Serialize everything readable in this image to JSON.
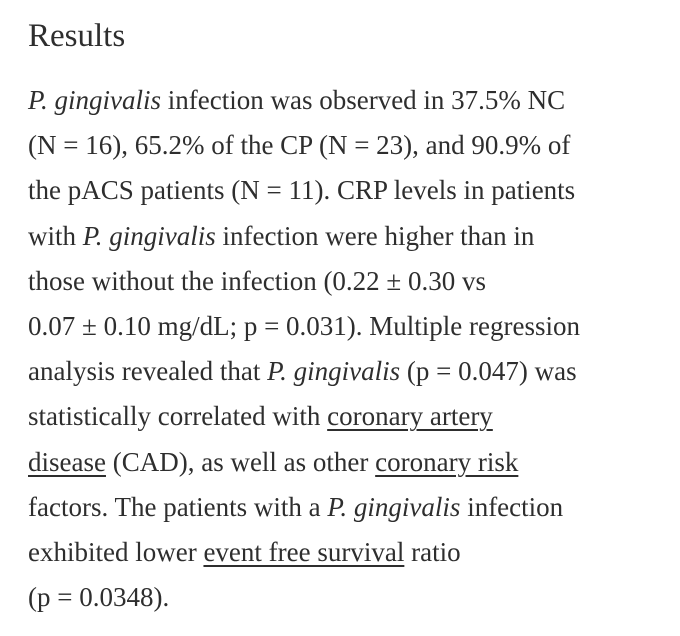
{
  "heading": "Results",
  "paragraph": {
    "lines": [
      [
        {
          "text": "P. gingivalis",
          "italic": true
        },
        {
          "text": " infection was observed in 37.5% NC"
        }
      ],
      [
        {
          "text": "(N = 16), 65.2% of the CP (N = 23), and 90.9% of"
        }
      ],
      [
        {
          "text": "the pACS patients (N = 11). CRP levels in patients"
        }
      ],
      [
        {
          "text": "with "
        },
        {
          "text": "P. gingivalis",
          "italic": true
        },
        {
          "text": " infection were higher than in"
        }
      ],
      [
        {
          "text": "those without the infection (0.22 ± 0.30 vs"
        }
      ],
      [
        {
          "text": "0.07 ± 0.10 mg/dL; p = 0.031). Multiple regression"
        }
      ],
      [
        {
          "text": "analysis revealed that "
        },
        {
          "text": "P. gingivalis",
          "italic": true
        },
        {
          "text": " (p = 0.047) was"
        }
      ],
      [
        {
          "text": "statistically correlated with "
        },
        {
          "text": "coronary artery",
          "underline": true
        }
      ],
      [
        {
          "text": "disease",
          "underline": true
        },
        {
          "text": " (CAD), as well as other "
        },
        {
          "text": "coronary risk",
          "underline": true
        }
      ],
      [
        {
          "text": "factors. The patients with a "
        },
        {
          "text": "P. gingivalis",
          "italic": true
        },
        {
          "text": " infection"
        }
      ],
      [
        {
          "text": "exhibited lower "
        },
        {
          "text": "event free survival",
          "underline": true
        },
        {
          "text": " ratio"
        }
      ],
      [
        {
          "text": "(p = 0.0348)."
        }
      ]
    ]
  }
}
